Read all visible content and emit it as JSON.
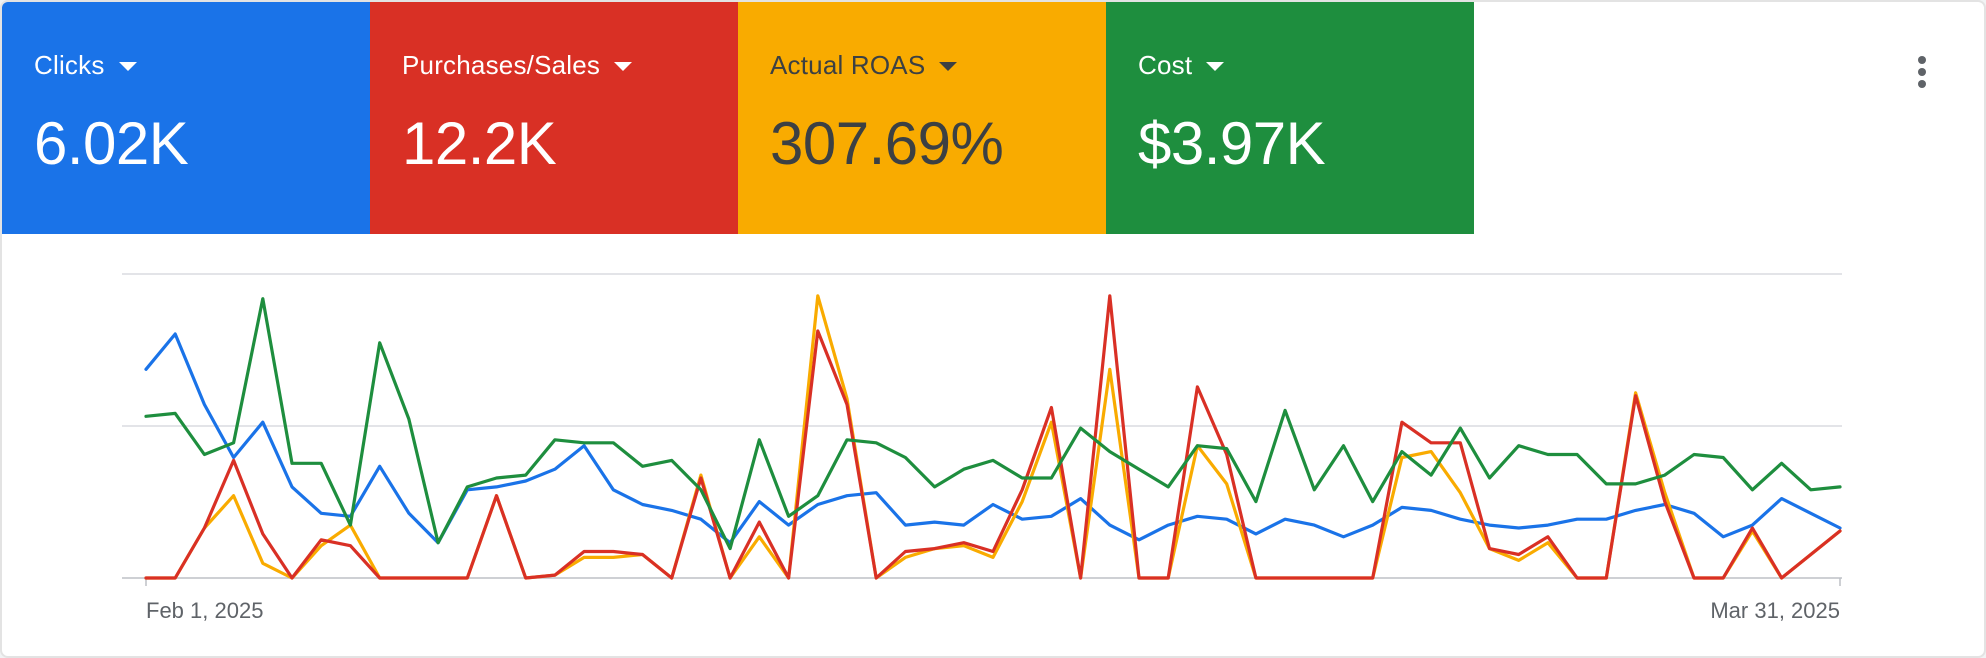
{
  "metrics": [
    {
      "label": "Clicks",
      "value": "6.02K",
      "color": "#1a73e8",
      "text_color": "#ffffff"
    },
    {
      "label": "Purchases/Sales",
      "value": "12.2K",
      "color": "#d93025",
      "text_color": "#ffffff"
    },
    {
      "label": "Actual ROAS",
      "value": "307.69%",
      "color": "#f9ab00",
      "text_color": "#3c4043"
    },
    {
      "label": "Cost",
      "value": "$3.97K",
      "color": "#1e8e3e",
      "text_color": "#ffffff"
    }
  ],
  "menu": {
    "icon": "more-vert-icon"
  },
  "chart_data": {
    "type": "line",
    "x": [
      "Feb 1, 2025",
      "Feb 2, 2025",
      "Feb 3, 2025",
      "Feb 4, 2025",
      "Feb 5, 2025",
      "Feb 6, 2025",
      "Feb 7, 2025",
      "Feb 8, 2025",
      "Feb 9, 2025",
      "Feb 10, 2025",
      "Feb 11, 2025",
      "Feb 12, 2025",
      "Feb 13, 2025",
      "Feb 14, 2025",
      "Feb 15, 2025",
      "Feb 16, 2025",
      "Feb 17, 2025",
      "Feb 18, 2025",
      "Feb 19, 2025",
      "Feb 20, 2025",
      "Feb 21, 2025",
      "Feb 22, 2025",
      "Feb 23, 2025",
      "Feb 24, 2025",
      "Feb 25, 2025",
      "Feb 26, 2025",
      "Feb 27, 2025",
      "Feb 28, 2025",
      "Mar 1, 2025",
      "Mar 2, 2025",
      "Mar 3, 2025",
      "Mar 4, 2025",
      "Mar 5, 2025",
      "Mar 6, 2025",
      "Mar 7, 2025",
      "Mar 8, 2025",
      "Mar 9, 2025",
      "Mar 10, 2025",
      "Mar 11, 2025",
      "Mar 12, 2025",
      "Mar 13, 2025",
      "Mar 14, 2025",
      "Mar 15, 2025",
      "Mar 16, 2025",
      "Mar 17, 2025",
      "Mar 18, 2025",
      "Mar 19, 2025",
      "Mar 20, 2025",
      "Mar 21, 2025",
      "Mar 22, 2025",
      "Mar 23, 2025",
      "Mar 24, 2025",
      "Mar 25, 2025",
      "Mar 26, 2025",
      "Mar 27, 2025",
      "Mar 28, 2025",
      "Mar 29, 2025",
      "Mar 30, 2025",
      "Mar 31, 2025"
    ],
    "x_tick_labels": [
      "Feb 1, 2025",
      "Mar 31, 2025"
    ],
    "y_gridlines": 3,
    "y_axis_labels": "none",
    "normalized_y_range": [
      0,
      1
    ],
    "grid": true,
    "series": [
      {
        "name": "Clicks",
        "color": "#1a73e8",
        "values": [
          0.71,
          0.83,
          0.59,
          0.41,
          0.53,
          0.31,
          0.22,
          0.21,
          0.38,
          0.22,
          0.12,
          0.3,
          0.31,
          0.33,
          0.37,
          0.45,
          0.3,
          0.25,
          0.23,
          0.2,
          0.12,
          0.26,
          0.18,
          0.25,
          0.28,
          0.29,
          0.18,
          0.19,
          0.18,
          0.25,
          0.2,
          0.21,
          0.27,
          0.18,
          0.13,
          0.18,
          0.21,
          0.2,
          0.15,
          0.2,
          0.18,
          0.14,
          0.18,
          0.24,
          0.23,
          0.2,
          0.18,
          0.17,
          0.18,
          0.2,
          0.2,
          0.23,
          0.25,
          0.22,
          0.14,
          0.18,
          0.27,
          0.22,
          0.17
        ]
      },
      {
        "name": "Purchases/Sales",
        "color": "#d93025",
        "values": [
          0,
          0,
          0.17,
          0.4,
          0.15,
          0,
          0.13,
          0.11,
          0,
          0,
          0,
          0,
          0.28,
          0,
          0.01,
          0.09,
          0.09,
          0.08,
          0,
          0.34,
          0,
          0.19,
          0,
          0.84,
          0.59,
          0,
          0.09,
          0.1,
          0.12,
          0.09,
          0.3,
          0.58,
          0,
          0.96,
          0,
          0,
          0.65,
          0.42,
          0,
          0,
          0,
          0,
          0,
          0.53,
          0.46,
          0.46,
          0.1,
          0.08,
          0.14,
          0,
          0,
          0.62,
          0.26,
          0,
          0,
          0.17,
          0,
          0.08,
          0.16
        ]
      },
      {
        "name": "Actual ROAS",
        "color": "#f9ab00",
        "values": [
          0,
          0,
          0.17,
          0.28,
          0.05,
          0,
          0.11,
          0.18,
          0,
          0,
          0,
          0,
          0.28,
          0,
          0.01,
          0.07,
          0.07,
          0.08,
          0,
          0.35,
          0,
          0.14,
          0,
          0.96,
          0.61,
          0,
          0.07,
          0.1,
          0.11,
          0.07,
          0.26,
          0.53,
          0,
          0.71,
          0,
          0,
          0.45,
          0.32,
          0,
          0,
          0,
          0,
          0,
          0.41,
          0.43,
          0.29,
          0.1,
          0.06,
          0.12,
          0,
          0,
          0.63,
          0.29,
          0,
          0,
          0.16,
          0,
          0.08,
          0.16
        ]
      },
      {
        "name": "Cost",
        "color": "#1e8e3e",
        "values": [
          0.55,
          0.56,
          0.42,
          0.46,
          0.95,
          0.39,
          0.39,
          0.18,
          0.8,
          0.54,
          0.12,
          0.31,
          0.34,
          0.35,
          0.47,
          0.46,
          0.46,
          0.38,
          0.4,
          0.3,
          0.1,
          0.47,
          0.21,
          0.28,
          0.47,
          0.46,
          0.41,
          0.31,
          0.37,
          0.4,
          0.34,
          0.34,
          0.51,
          0.43,
          0.37,
          0.31,
          0.45,
          0.44,
          0.26,
          0.57,
          0.3,
          0.45,
          0.26,
          0.43,
          0.35,
          0.51,
          0.34,
          0.45,
          0.42,
          0.42,
          0.32,
          0.32,
          0.35,
          0.42,
          0.41,
          0.3,
          0.39,
          0.3,
          0.31
        ]
      }
    ]
  }
}
